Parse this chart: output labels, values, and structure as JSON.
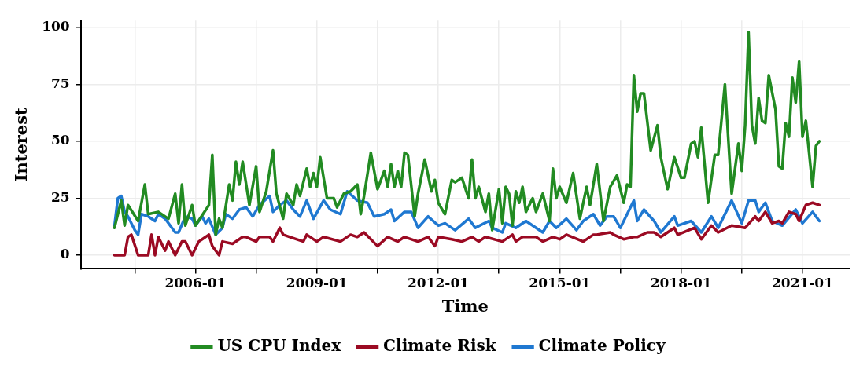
{
  "chart_data": {
    "type": "line",
    "xlabel": "Time",
    "ylabel": "Interest",
    "xlim": [
      "2003-03",
      "2022-03"
    ],
    "ylim": [
      -6,
      103
    ],
    "xticks": [
      {
        "value": "2004-07",
        "label": null
      },
      "2006-01",
      {
        "value": "2007-07",
        "label": null
      },
      "2009-01",
      {
        "value": "2010-07",
        "label": null
      },
      "2012-01",
      {
        "value": "2013-07",
        "label": null
      },
      "2015-01",
      {
        "value": "2016-07",
        "label": null
      },
      "2018-01",
      {
        "value": "2019-07",
        "label": null
      },
      "2021-01"
    ],
    "yticks": [
      0,
      25,
      50,
      75,
      100
    ],
    "grid": true,
    "legend": "bottom",
    "marker": "none",
    "line_style": "solid",
    "series": [
      {
        "name": "US CPU Index",
        "color": "#228b22",
        "x": [
          "2004-01",
          "2004-03",
          "2004-04",
          "2004-05",
          "2004-08",
          "2004-10",
          "2004-11",
          "2005-02",
          "2005-05",
          "2005-07",
          "2005-08",
          "2005-09",
          "2005-10",
          "2005-12",
          "2006-01",
          "2006-05",
          "2006-06",
          "2006-07",
          "2006-08",
          "2006-09",
          "2006-11",
          "2006-12",
          "2007-01",
          "2007-02",
          "2007-03",
          "2007-05",
          "2007-07",
          "2007-08",
          "2007-10",
          "2007-12",
          "2008-01",
          "2008-03",
          "2008-04",
          "2008-06",
          "2008-07",
          "2008-08",
          "2008-10",
          "2008-11",
          "2008-12",
          "2009-01",
          "2009-02",
          "2009-04",
          "2009-06",
          "2009-07",
          "2009-09",
          "2009-11",
          "2010-01",
          "2010-02",
          "2010-03",
          "2010-05",
          "2010-07",
          "2010-09",
          "2010-10",
          "2010-11",
          "2010-12",
          "2011-01",
          "2011-02",
          "2011-03",
          "2011-04",
          "2011-06",
          "2011-07",
          "2011-09",
          "2011-11",
          "2011-12",
          "2012-01",
          "2012-03",
          "2012-05",
          "2012-06",
          "2012-08",
          "2012-10",
          "2012-11",
          "2012-12",
          "2013-01",
          "2013-03",
          "2013-04",
          "2013-05",
          "2013-07",
          "2013-08",
          "2013-09",
          "2013-10",
          "2013-11",
          "2013-12",
          "2014-01",
          "2014-02",
          "2014-03",
          "2014-05",
          "2014-06",
          "2014-08",
          "2014-10",
          "2014-11",
          "2014-12",
          "2015-01",
          "2015-03",
          "2015-05",
          "2015-07",
          "2015-09",
          "2015-10",
          "2015-12",
          "2016-02",
          "2016-04",
          "2016-06",
          "2016-08",
          "2016-09",
          "2016-10",
          "2016-11",
          "2016-12",
          "2017-01",
          "2017-02",
          "2017-04",
          "2017-06",
          "2017-07",
          "2017-09",
          "2017-11",
          "2018-01",
          "2018-02",
          "2018-04",
          "2018-05",
          "2018-06",
          "2018-07",
          "2018-09",
          "2018-11",
          "2018-12",
          "2019-02",
          "2019-04",
          "2019-06",
          "2019-07",
          "2019-08",
          "2019-09",
          "2019-10",
          "2019-11",
          "2019-12",
          "2020-01",
          "2020-02",
          "2020-03",
          "2020-05",
          "2020-06",
          "2020-07",
          "2020-08",
          "2020-09",
          "2020-10",
          "2020-11",
          "2020-12",
          "2021-01",
          "2021-02",
          "2021-04",
          "2021-05",
          "2021-06"
        ],
        "values": [
          12,
          24,
          13,
          22,
          15,
          31,
          18,
          19,
          16,
          27,
          14,
          31,
          13,
          22,
          13,
          22,
          44,
          9,
          16,
          12,
          31,
          24,
          41,
          31,
          41,
          22,
          39,
          19,
          28,
          46,
          27,
          16,
          27,
          22,
          31,
          26,
          38,
          30,
          36,
          30,
          43,
          25,
          25,
          21,
          27,
          28,
          31,
          18,
          26,
          45,
          29,
          37,
          30,
          40,
          30,
          37,
          30,
          45,
          44,
          17,
          27,
          42,
          28,
          33,
          23,
          18,
          33,
          32,
          34,
          25,
          42,
          25,
          30,
          19,
          27,
          11,
          29,
          14,
          30,
          27,
          13,
          28,
          23,
          30,
          19,
          25,
          19,
          27,
          15,
          38,
          25,
          30,
          23,
          36,
          16,
          30,
          22,
          40,
          15,
          30,
          35,
          23,
          31,
          30,
          79,
          63,
          71,
          71,
          46,
          57,
          43,
          29,
          43,
          34,
          34,
          49,
          50,
          43,
          56,
          23,
          44,
          44,
          75,
          27,
          49,
          37,
          57,
          98,
          57,
          49,
          69,
          59,
          58,
          79,
          64,
          39,
          38,
          58,
          52,
          78,
          67,
          85,
          52,
          59,
          30,
          48,
          50
        ]
      },
      {
        "name": "Climate Risk",
        "color": "#9b0a23",
        "x": [
          "2004-01",
          "2004-04",
          "2004-05",
          "2004-06",
          "2004-08",
          "2004-11",
          "2004-12",
          "2005-01",
          "2005-02",
          "2005-04",
          "2005-05",
          "2005-07",
          "2005-09",
          "2005-10",
          "2005-12",
          "2006-02",
          "2006-03",
          "2006-05",
          "2006-06",
          "2006-08",
          "2006-09",
          "2006-12",
          "2007-03",
          "2007-04",
          "2007-07",
          "2007-08",
          "2007-11",
          "2007-12",
          "2008-02",
          "2008-03",
          "2008-05",
          "2008-09",
          "2008-10",
          "2009-01",
          "2009-03",
          "2009-08",
          "2009-11",
          "2010-01",
          "2010-03",
          "2010-07",
          "2010-10",
          "2011-01",
          "2011-03",
          "2011-07",
          "2011-10",
          "2011-12",
          "2012-01",
          "2012-05",
          "2012-08",
          "2012-11",
          "2013-01",
          "2013-03",
          "2013-08",
          "2013-11",
          "2013-12",
          "2014-02",
          "2014-06",
          "2014-08",
          "2014-11",
          "2015-01",
          "2015-03",
          "2015-08",
          "2015-11",
          "2015-12",
          "2016-04",
          "2016-05",
          "2016-08",
          "2016-11",
          "2016-12",
          "2017-03",
          "2017-05",
          "2017-07",
          "2017-11",
          "2017-12",
          "2018-05",
          "2018-07",
          "2018-10",
          "2018-12",
          "2019-04",
          "2019-08",
          "2019-11",
          "2019-12",
          "2020-02",
          "2020-04",
          "2020-06",
          "2020-07",
          "2020-09",
          "2020-11",
          "2020-12",
          "2021-02",
          "2021-04",
          "2021-06"
        ],
        "values": [
          0,
          0,
          8,
          9,
          0,
          0,
          9,
          0,
          8,
          2,
          6,
          0,
          6,
          6,
          0,
          6,
          7,
          9,
          4,
          0,
          6,
          5,
          8,
          8,
          6,
          8,
          8,
          6,
          12,
          9,
          8,
          6,
          9,
          6,
          8,
          6,
          9,
          8,
          10,
          4,
          8,
          6,
          8,
          6,
          8,
          4,
          8,
          7,
          6,
          8,
          6,
          8,
          6,
          9,
          6,
          8,
          8,
          6,
          8,
          7,
          9,
          6,
          9,
          9,
          10,
          9,
          7,
          8,
          8,
          10,
          10,
          8,
          12,
          9,
          12,
          7,
          13,
          10,
          13,
          12,
          17,
          15,
          19,
          14,
          15,
          14,
          19,
          18,
          15,
          22,
          23,
          22
        ]
      },
      {
        "name": "Climate Policy",
        "color": "#1f78d1",
        "x": [
          "2004-01",
          "2004-02",
          "2004-03",
          "2004-04",
          "2004-05",
          "2004-07",
          "2004-08",
          "2004-09",
          "2004-11",
          "2005-01",
          "2005-02",
          "2005-04",
          "2005-07",
          "2005-08",
          "2005-10",
          "2005-12",
          "2006-01",
          "2006-03",
          "2006-04",
          "2006-05",
          "2006-07",
          "2006-09",
          "2006-10",
          "2006-12",
          "2007-02",
          "2007-04",
          "2007-06",
          "2007-08",
          "2007-11",
          "2007-12",
          "2008-02",
          "2008-04",
          "2008-06",
          "2008-08",
          "2008-10",
          "2008-12",
          "2009-03",
          "2009-05",
          "2009-08",
          "2009-10",
          "2010-01",
          "2010-04",
          "2010-06",
          "2010-09",
          "2010-11",
          "2010-12",
          "2011-03",
          "2011-05",
          "2011-07",
          "2011-10",
          "2012-01",
          "2012-03",
          "2012-06",
          "2012-10",
          "2012-12",
          "2013-04",
          "2013-05",
          "2013-08",
          "2013-09",
          "2013-12",
          "2014-03",
          "2014-08",
          "2014-10",
          "2014-12",
          "2015-03",
          "2015-06",
          "2015-08",
          "2015-11",
          "2016-01",
          "2016-03",
          "2016-05",
          "2016-07",
          "2016-11",
          "2016-12",
          "2017-02",
          "2017-05",
          "2017-07",
          "2017-11",
          "2017-12",
          "2018-04",
          "2018-07",
          "2018-10",
          "2018-12",
          "2019-04",
          "2019-07",
          "2019-09",
          "2019-11",
          "2019-12",
          "2020-02",
          "2020-04",
          "2020-07",
          "2020-11",
          "2021-01",
          "2021-04",
          "2021-06"
        ],
        "values": [
          13,
          25,
          26,
          19,
          17,
          11,
          9,
          18,
          17,
          15,
          18,
          16,
          10,
          10,
          17,
          16,
          13,
          17,
          14,
          16,
          9,
          12,
          18,
          16,
          20,
          21,
          17,
          22,
          26,
          19,
          22,
          24,
          20,
          17,
          24,
          16,
          24,
          20,
          18,
          28,
          24,
          23,
          17,
          18,
          20,
          15,
          19,
          19,
          12,
          17,
          13,
          14,
          11,
          16,
          12,
          15,
          12,
          10,
          14,
          12,
          15,
          10,
          15,
          12,
          16,
          11,
          15,
          18,
          13,
          17,
          17,
          12,
          24,
          15,
          20,
          15,
          10,
          17,
          13,
          15,
          10,
          17,
          12,
          24,
          14,
          24,
          24,
          19,
          23,
          15,
          13,
          20,
          14,
          19,
          15
        ]
      }
    ]
  }
}
